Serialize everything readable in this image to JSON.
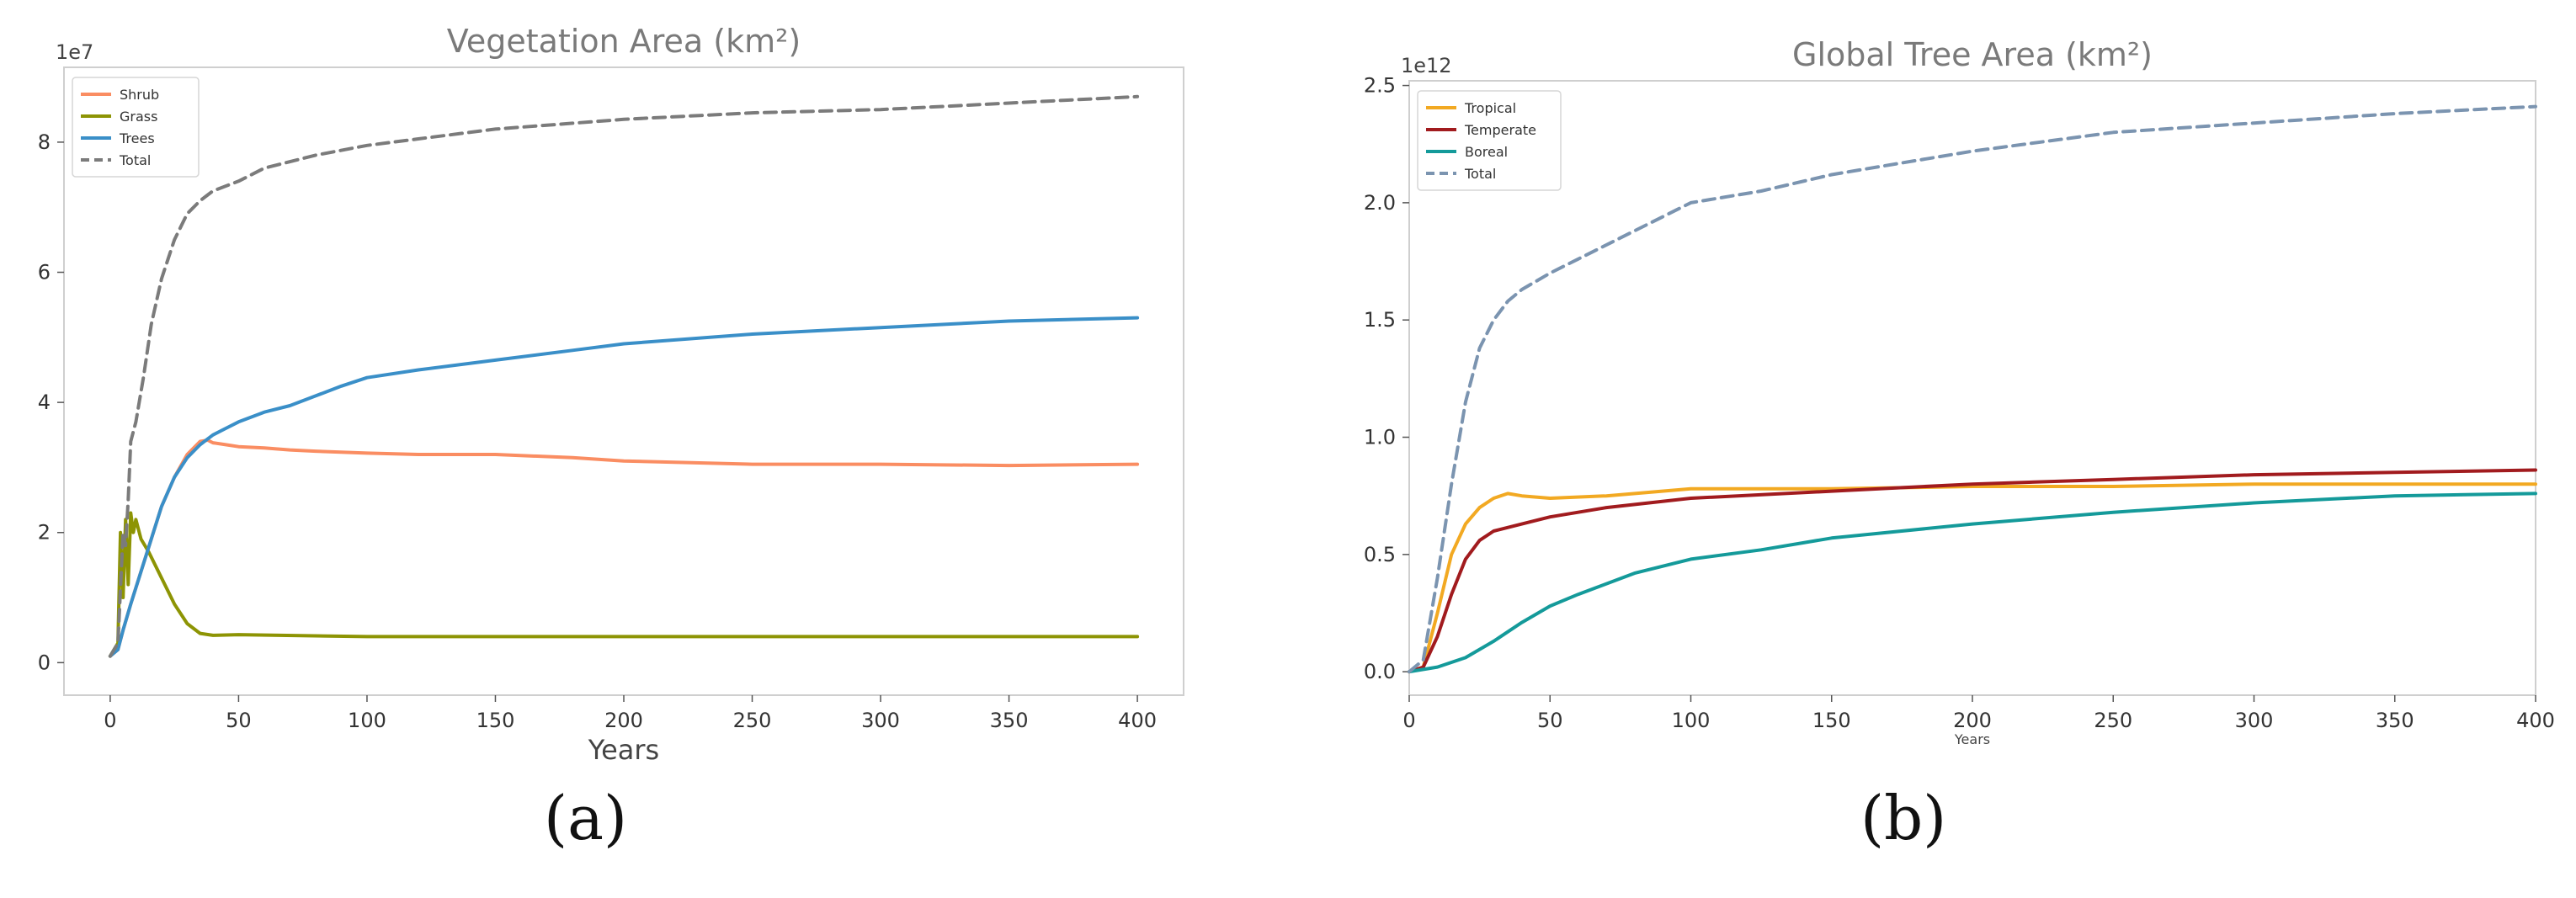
{
  "captions": [
    "(a)",
    "(b)"
  ],
  "chart_data": [
    {
      "type": "line",
      "title": "Vegetation Area (km²)",
      "xlabel": "Years",
      "ylabel": "",
      "y_multiplier": "1e7",
      "xlim": [
        -18,
        418
      ],
      "ylim": [
        -0.5,
        9.15
      ],
      "xticks": [
        0,
        50,
        100,
        150,
        200,
        250,
        300,
        350,
        400
      ],
      "yticks": [
        0,
        2,
        4,
        6,
        8
      ],
      "ytick_labels": [
        "0",
        "2",
        "4",
        "6",
        "8"
      ],
      "grid": false,
      "legend": "upper-left",
      "series": [
        {
          "name": "Shrub",
          "color": "#FA8D62",
          "dash": false,
          "x": [
            0,
            3,
            5,
            8,
            12,
            16,
            20,
            25,
            30,
            35,
            38,
            40,
            45,
            50,
            60,
            70,
            80,
            100,
            120,
            150,
            180,
            200,
            250,
            300,
            350,
            400
          ],
          "y": [
            0.1,
            0.2,
            0.5,
            0.9,
            1.4,
            1.9,
            2.4,
            2.85,
            3.2,
            3.4,
            3.42,
            3.38,
            3.35,
            3.32,
            3.3,
            3.27,
            3.25,
            3.22,
            3.2,
            3.2,
            3.15,
            3.1,
            3.05,
            3.05,
            3.03,
            3.05
          ]
        },
        {
          "name": "Grass",
          "color": "#8D9404",
          "dash": false,
          "x": [
            0,
            3,
            4,
            5,
            6,
            7,
            8,
            9,
            10,
            12,
            15,
            20,
            25,
            30,
            35,
            40,
            50,
            100,
            150,
            200,
            250,
            300,
            350,
            400
          ],
          "y": [
            0.1,
            0.3,
            2.0,
            1.0,
            2.2,
            1.2,
            2.3,
            2.0,
            2.2,
            1.9,
            1.7,
            1.3,
            0.9,
            0.6,
            0.45,
            0.42,
            0.43,
            0.4,
            0.4,
            0.4,
            0.4,
            0.4,
            0.4,
            0.4
          ]
        },
        {
          "name": "Trees",
          "color": "#3A8FC8",
          "dash": false,
          "x": [
            0,
            3,
            5,
            8,
            12,
            16,
            20,
            25,
            30,
            35,
            40,
            45,
            50,
            60,
            70,
            80,
            90,
            100,
            120,
            150,
            180,
            200,
            250,
            300,
            350,
            400
          ],
          "y": [
            0.1,
            0.2,
            0.5,
            0.9,
            1.4,
            1.9,
            2.4,
            2.85,
            3.15,
            3.35,
            3.5,
            3.6,
            3.7,
            3.85,
            3.95,
            4.1,
            4.25,
            4.38,
            4.5,
            4.65,
            4.8,
            4.9,
            5.05,
            5.15,
            5.25,
            5.3
          ]
        },
        {
          "name": "Total",
          "color": "#7B7B7B",
          "dash": true,
          "x": [
            0,
            3,
            5,
            6,
            7,
            8,
            10,
            13,
            16,
            20,
            25,
            30,
            35,
            40,
            50,
            60,
            80,
            100,
            120,
            150,
            200,
            250,
            300,
            350,
            400
          ],
          "y": [
            0.1,
            0.3,
            2.0,
            1.8,
            2.5,
            3.4,
            3.7,
            4.4,
            5.2,
            5.9,
            6.5,
            6.9,
            7.1,
            7.25,
            7.4,
            7.6,
            7.8,
            7.95,
            8.05,
            8.2,
            8.35,
            8.45,
            8.5,
            8.6,
            8.7
          ]
        }
      ]
    },
    {
      "type": "line",
      "title": "Global Tree Area (km²)",
      "xlabel": "Years",
      "ylabel": "",
      "y_multiplier": "1e12",
      "xlim": [
        0,
        400
      ],
      "ylim": [
        -0.1,
        2.52
      ],
      "xticks": [
        0,
        50,
        100,
        150,
        200,
        250,
        300,
        350,
        400
      ],
      "yticks": [
        0,
        0.5,
        1.0,
        1.5,
        2.0,
        2.5
      ],
      "ytick_labels": [
        "0.0",
        "0.5",
        "1.0",
        "1.5",
        "2.0",
        "2.5"
      ],
      "grid": false,
      "legend": "upper-left",
      "series": [
        {
          "name": "Tropical",
          "color": "#F2A922",
          "dash": false,
          "x": [
            0,
            5,
            10,
            15,
            20,
            25,
            30,
            35,
            40,
            50,
            70,
            100,
            150,
            200,
            250,
            300,
            350,
            400
          ],
          "y": [
            0.0,
            0.02,
            0.25,
            0.5,
            0.63,
            0.7,
            0.74,
            0.76,
            0.75,
            0.74,
            0.75,
            0.78,
            0.78,
            0.79,
            0.79,
            0.8,
            0.8,
            0.8
          ]
        },
        {
          "name": "Temperate",
          "color": "#A11B1E",
          "dash": false,
          "x": [
            0,
            5,
            10,
            15,
            20,
            25,
            30,
            40,
            50,
            70,
            100,
            150,
            200,
            250,
            300,
            350,
            400
          ],
          "y": [
            0.0,
            0.02,
            0.15,
            0.33,
            0.48,
            0.56,
            0.6,
            0.63,
            0.66,
            0.7,
            0.74,
            0.77,
            0.8,
            0.82,
            0.84,
            0.85,
            0.86
          ]
        },
        {
          "name": "Boreal",
          "color": "#149A9A",
          "dash": false,
          "x": [
            0,
            10,
            20,
            30,
            40,
            50,
            60,
            80,
            100,
            125,
            150,
            200,
            250,
            300,
            350,
            400
          ],
          "y": [
            0.0,
            0.02,
            0.06,
            0.13,
            0.21,
            0.28,
            0.33,
            0.42,
            0.48,
            0.52,
            0.57,
            0.63,
            0.68,
            0.72,
            0.75,
            0.76
          ]
        },
        {
          "name": "Total",
          "color": "#7B94B0",
          "dash": true,
          "x": [
            0,
            5,
            10,
            15,
            20,
            25,
            30,
            35,
            40,
            50,
            60,
            80,
            100,
            125,
            150,
            200,
            250,
            300,
            350,
            400
          ],
          "y": [
            0.0,
            0.05,
            0.4,
            0.8,
            1.15,
            1.38,
            1.5,
            1.58,
            1.63,
            1.7,
            1.76,
            1.88,
            2.0,
            2.05,
            2.12,
            2.22,
            2.3,
            2.34,
            2.38,
            2.41
          ]
        }
      ]
    }
  ]
}
